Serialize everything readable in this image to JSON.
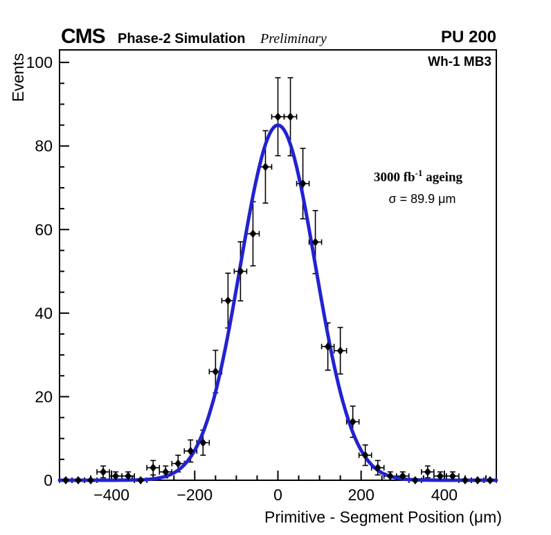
{
  "header": {
    "experiment": "CMS",
    "sim_label": "Phase-2 Simulation",
    "preliminary": "Preliminary",
    "pileup": "PU 200"
  },
  "plot": {
    "region_label": "Wh-1 MB3",
    "annotation": {
      "lumi_prefix": "3000 fb",
      "lumi_sup": "-1",
      "lumi_suffix": " ageing",
      "sigma": "σ = 89.9 μm"
    }
  },
  "chart_data": {
    "type": "scatter",
    "title": "",
    "xlabel": "Primitive - Segment Position (μm)",
    "ylabel": "Events",
    "xlim": [
      -525,
      525
    ],
    "ylim": [
      0,
      103
    ],
    "grid": false,
    "legend": null,
    "x_major_ticks": [
      -400,
      -200,
      0,
      200,
      400
    ],
    "x_tick_labels": [
      "−400",
      "−200",
      "0",
      "200",
      "400"
    ],
    "x_minor_step": 50,
    "y_major_ticks": [
      0,
      20,
      40,
      60,
      80,
      100
    ],
    "y_tick_labels": [
      "0",
      "20",
      "40",
      "60",
      "80",
      "100"
    ],
    "y_minor_step": 5,
    "bin_width": 30,
    "x_error_half_width": 15,
    "y_error_mode": "poisson_sqrt",
    "x": [
      -510,
      -480,
      -450,
      -420,
      -390,
      -360,
      -330,
      -300,
      -270,
      -240,
      -210,
      -180,
      -150,
      -120,
      -90,
      -60,
      -30,
      0,
      30,
      60,
      90,
      120,
      150,
      180,
      210,
      240,
      270,
      300,
      330,
      360,
      390,
      420,
      450,
      480,
      510
    ],
    "values": [
      0,
      0,
      0,
      2,
      1,
      1,
      0,
      3,
      2,
      4,
      7,
      9,
      26,
      43,
      50,
      59,
      75,
      87,
      87,
      71,
      57,
      32,
      31,
      14,
      6,
      3,
      1,
      1,
      0,
      2,
      1,
      1,
      0,
      0,
      0
    ],
    "marker": {
      "shape": "diamond",
      "color": "#000000",
      "size": 5
    },
    "fit": {
      "type": "gaussian",
      "amplitude": 85,
      "mean": 0,
      "sigma": 89.9,
      "color": "#2222d2",
      "line_width": 5
    },
    "axis_color": "#000000"
  }
}
